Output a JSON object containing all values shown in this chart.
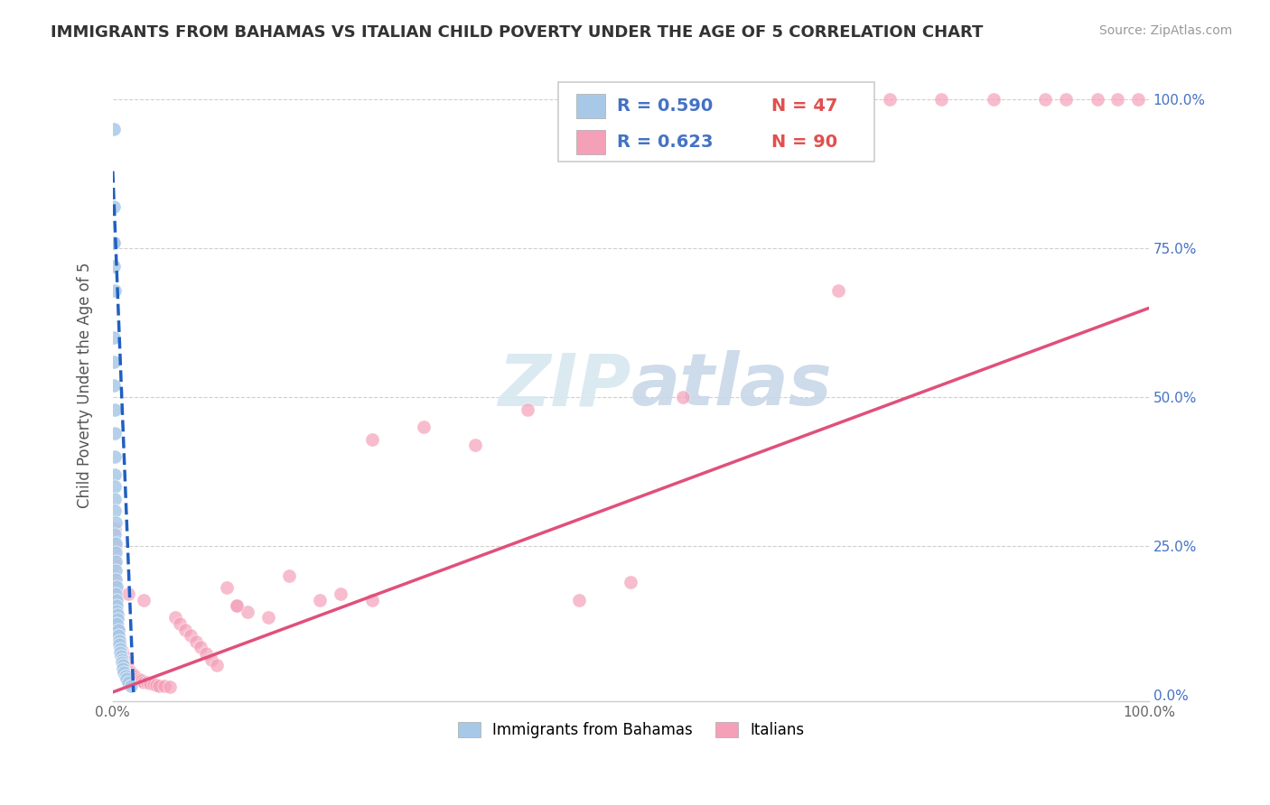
{
  "title": "IMMIGRANTS FROM BAHAMAS VS ITALIAN CHILD POVERTY UNDER THE AGE OF 5 CORRELATION CHART",
  "source": "Source: ZipAtlas.com",
  "ylabel": "Child Poverty Under the Age of 5",
  "legend_label_blue": "Immigrants from Bahamas",
  "legend_label_pink": "Italians",
  "blue_color": "#a8c8e8",
  "pink_color": "#f4a0b8",
  "blue_line_color": "#2060c0",
  "pink_line_color": "#e0507a",
  "watermark": "ZIPatlas",
  "blue_scatter_x": [
    0.0008,
    0.001,
    0.0012,
    0.0008,
    0.0015,
    0.001,
    0.0012,
    0.0014,
    0.0016,
    0.0018,
    0.002,
    0.0022,
    0.0015,
    0.0018,
    0.002,
    0.0025,
    0.0022,
    0.0028,
    0.003,
    0.0025,
    0.0032,
    0.0028,
    0.0035,
    0.003,
    0.0038,
    0.004,
    0.0035,
    0.0042,
    0.0045,
    0.004,
    0.005,
    0.0055,
    0.006,
    0.0065,
    0.007,
    0.0075,
    0.008,
    0.0085,
    0.009,
    0.0095,
    0.01,
    0.011,
    0.012,
    0.013,
    0.015,
    0.018,
    0.0012
  ],
  "blue_scatter_y": [
    0.95,
    0.82,
    0.76,
    0.72,
    0.68,
    0.6,
    0.56,
    0.52,
    0.48,
    0.44,
    0.4,
    0.37,
    0.35,
    0.33,
    0.31,
    0.29,
    0.27,
    0.255,
    0.24,
    0.225,
    0.21,
    0.195,
    0.182,
    0.17,
    0.16,
    0.15,
    0.142,
    0.135,
    0.128,
    0.12,
    0.11,
    0.1,
    0.092,
    0.085,
    0.078,
    0.072,
    0.066,
    0.06,
    0.055,
    0.05,
    0.045,
    0.038,
    0.032,
    0.028,
    0.022,
    0.015,
    0.76
  ],
  "pink_scatter_x": [
    0.0008,
    0.001,
    0.0012,
    0.0015,
    0.0018,
    0.002,
    0.0022,
    0.0025,
    0.0028,
    0.003,
    0.0032,
    0.0035,
    0.0038,
    0.004,
    0.0042,
    0.0045,
    0.0048,
    0.005,
    0.0055,
    0.006,
    0.0065,
    0.007,
    0.0075,
    0.008,
    0.0085,
    0.009,
    0.0095,
    0.01,
    0.011,
    0.012,
    0.013,
    0.014,
    0.015,
    0.016,
    0.017,
    0.018,
    0.019,
    0.02,
    0.022,
    0.024,
    0.026,
    0.028,
    0.03,
    0.033,
    0.036,
    0.039,
    0.042,
    0.045,
    0.05,
    0.055,
    0.06,
    0.065,
    0.07,
    0.075,
    0.08,
    0.085,
    0.09,
    0.095,
    0.1,
    0.11,
    0.12,
    0.13,
    0.15,
    0.17,
    0.2,
    0.22,
    0.25,
    0.3,
    0.35,
    0.4,
    0.45,
    0.5,
    0.55,
    0.6,
    0.65,
    0.7,
    0.75,
    0.8,
    0.85,
    0.9,
    0.92,
    0.95,
    0.97,
    0.99,
    0.0015,
    0.0025,
    0.015,
    0.03,
    0.12,
    0.25
  ],
  "pink_scatter_y": [
    0.24,
    0.23,
    0.2,
    0.22,
    0.19,
    0.18,
    0.17,
    0.175,
    0.165,
    0.155,
    0.148,
    0.142,
    0.135,
    0.128,
    0.122,
    0.118,
    0.112,
    0.108,
    0.1,
    0.095,
    0.09,
    0.086,
    0.082,
    0.078,
    0.075,
    0.072,
    0.068,
    0.065,
    0.06,
    0.056,
    0.052,
    0.049,
    0.046,
    0.043,
    0.04,
    0.038,
    0.036,
    0.034,
    0.03,
    0.028,
    0.026,
    0.025,
    0.022,
    0.021,
    0.02,
    0.018,
    0.017,
    0.016,
    0.015,
    0.014,
    0.13,
    0.12,
    0.11,
    0.1,
    0.09,
    0.08,
    0.07,
    0.06,
    0.05,
    0.18,
    0.15,
    0.14,
    0.13,
    0.2,
    0.16,
    0.17,
    0.43,
    0.45,
    0.42,
    0.48,
    0.16,
    0.19,
    0.5,
    1.0,
    1.0,
    0.68,
    1.0,
    1.0,
    1.0,
    1.0,
    1.0,
    1.0,
    1.0,
    1.0,
    0.28,
    0.25,
    0.17,
    0.16,
    0.15,
    0.16
  ],
  "blue_line_x": [
    0.0,
    0.02
  ],
  "blue_line_y": [
    0.88,
    0.005
  ],
  "pink_line_x": [
    0.0,
    1.0
  ],
  "pink_line_y": [
    0.005,
    0.65
  ],
  "xlim": [
    0.0,
    1.0
  ],
  "ylim": [
    -0.01,
    1.05
  ],
  "xtick_positions": [
    0.0,
    1.0
  ],
  "xtick_labels": [
    "0.0%",
    "100.0%"
  ],
  "ytick_positions": [
    0.0,
    0.25,
    0.5,
    0.75,
    1.0
  ],
  "ytick_labels": [
    "0.0%",
    "25.0%",
    "50.0%",
    "75.0%",
    "100.0%"
  ],
  "grid_yticks": [
    0.25,
    0.5,
    0.75,
    1.0
  ],
  "title_fontsize": 13,
  "source_fontsize": 10,
  "axis_tick_fontsize": 11,
  "right_tick_color": "#4472c4",
  "legend_r_color": "#4472c4",
  "legend_n_color": "#e05050"
}
